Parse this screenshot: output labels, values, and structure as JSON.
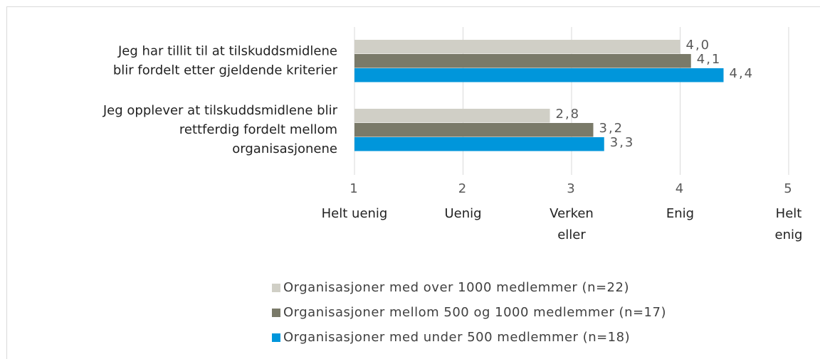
{
  "chart_data": {
    "type": "bar",
    "orientation": "horizontal",
    "categories": [
      [
        "Jeg har tillit til at tilskuddsmidlene",
        "blir fordelt etter gjeldende kriterier"
      ],
      [
        "Jeg opplever at tilskuddsmidlene blir",
        "rettferdig fordelt mellom",
        "organisasjonene"
      ]
    ],
    "series": [
      {
        "name": "Organisasjoner med over 1000 medlemmer (n=22)",
        "color": "#d0cfc6",
        "values": [
          4.0,
          2.8
        ],
        "value_labels": [
          "4,0",
          "2,8"
        ]
      },
      {
        "name": "Organisasjoner mellom 500 og 1000 medlemmer (n=17)",
        "color": "#7a7a69",
        "values": [
          4.1,
          3.2
        ],
        "value_labels": [
          "4,1",
          "3,2"
        ]
      },
      {
        "name": "Organisasjoner med under 500 medlemmer (n=18)",
        "color": "#0096db",
        "values": [
          4.4,
          3.3
        ],
        "value_labels": [
          "4,4",
          "3,3"
        ]
      }
    ],
    "xlim": [
      1,
      5
    ],
    "xticks": [
      1,
      2,
      3,
      4,
      5
    ],
    "scale_labels": [
      [
        "Helt uenig"
      ],
      [
        "Uenig"
      ],
      [
        "Verken",
        "eller"
      ],
      [
        "Enig"
      ],
      [
        "Helt",
        "enig"
      ]
    ],
    "grid": true,
    "legend": "bottom"
  }
}
